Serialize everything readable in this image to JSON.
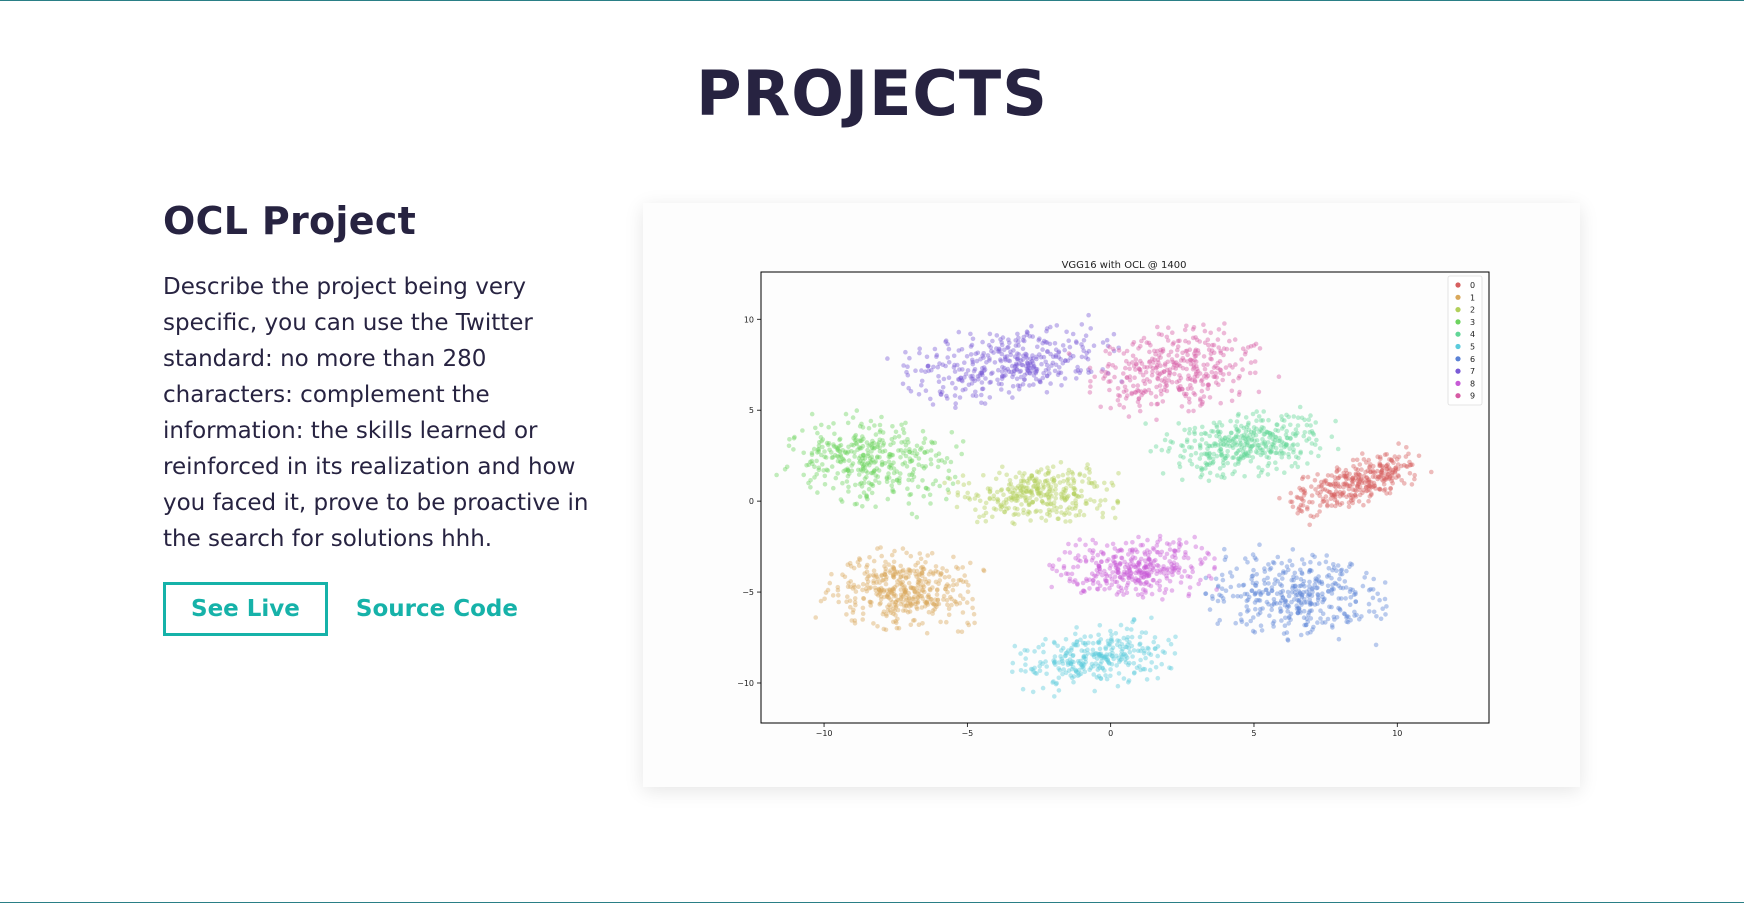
{
  "section": {
    "title": "PROJECTS"
  },
  "project": {
    "name": "OCL Project",
    "description": "Describe the project being very specific, you can use the Twitter standard: no more than 280 characters: complement the information: the skills learned or reinforced in its realization and how you faced it, prove to be proactive in the search for solutions hhh.",
    "see_live_label": "See Live",
    "source_code_label": "Source Code"
  },
  "colors": {
    "text": "#272341",
    "accent": "#16b2a9"
  },
  "chart_data": {
    "type": "scatter",
    "title": "VGG16 with OCL @ 1400",
    "xlabel": "",
    "ylabel": "",
    "xlim": [
      -12.2,
      13.2
    ],
    "ylim": [
      -12.2,
      12.6
    ],
    "xticks": [
      -10,
      -5,
      0,
      5,
      10
    ],
    "yticks": [
      -10,
      -5,
      0,
      5,
      10
    ],
    "xtick_labels": [
      "−10",
      "−5",
      "0",
      "5",
      "10"
    ],
    "ytick_labels": [
      "−10",
      "−5",
      "0",
      "5",
      "10"
    ],
    "grid": false,
    "legend_position": "top-right",
    "series": [
      {
        "name": "0",
        "color": "#d65f5f",
        "cluster": {
          "cx": 8.5,
          "cy": 1.0,
          "sx": 2.6,
          "sy": 1.2,
          "rot": 30,
          "n": 330
        }
      },
      {
        "name": "1",
        "color": "#d9a85b",
        "cluster": {
          "cx": -7.3,
          "cy": -4.9,
          "sx": 2.7,
          "sy": 2.2,
          "rot": -8,
          "n": 420
        }
      },
      {
        "name": "2",
        "color": "#b2d05b",
        "cluster": {
          "cx": -2.7,
          "cy": 0.4,
          "sx": 3.0,
          "sy": 1.6,
          "rot": 5,
          "n": 330
        }
      },
      {
        "name": "3",
        "color": "#6dd35f",
        "cluster": {
          "cx": -8.3,
          "cy": 2.2,
          "sx": 3.0,
          "sy": 2.4,
          "rot": -20,
          "n": 380
        }
      },
      {
        "name": "4",
        "color": "#62d697",
        "cluster": {
          "cx": 4.6,
          "cy": 3.1,
          "sx": 3.3,
          "sy": 1.8,
          "rot": 10,
          "n": 380
        }
      },
      {
        "name": "5",
        "color": "#5bcbdc",
        "cluster": {
          "cx": -0.5,
          "cy": -8.6,
          "sx": 2.9,
          "sy": 1.7,
          "rot": 15,
          "n": 300
        }
      },
      {
        "name": "6",
        "color": "#5b82d6",
        "cluster": {
          "cx": 6.5,
          "cy": -5.2,
          "sx": 3.2,
          "sy": 2.5,
          "rot": -12,
          "n": 380
        }
      },
      {
        "name": "7",
        "color": "#7a5bd6",
        "cluster": {
          "cx": -3.6,
          "cy": 7.6,
          "sx": 3.9,
          "sy": 2.0,
          "rot": 15,
          "n": 380
        }
      },
      {
        "name": "8",
        "color": "#c75bd6",
        "cluster": {
          "cx": 0.8,
          "cy": -3.7,
          "sx": 2.8,
          "sy": 1.7,
          "rot": 3,
          "n": 360
        }
      },
      {
        "name": "9",
        "color": "#d65ba4",
        "cluster": {
          "cx": 2.2,
          "cy": 7.2,
          "sx": 3.1,
          "sy": 2.3,
          "rot": 25,
          "n": 360
        }
      }
    ]
  }
}
